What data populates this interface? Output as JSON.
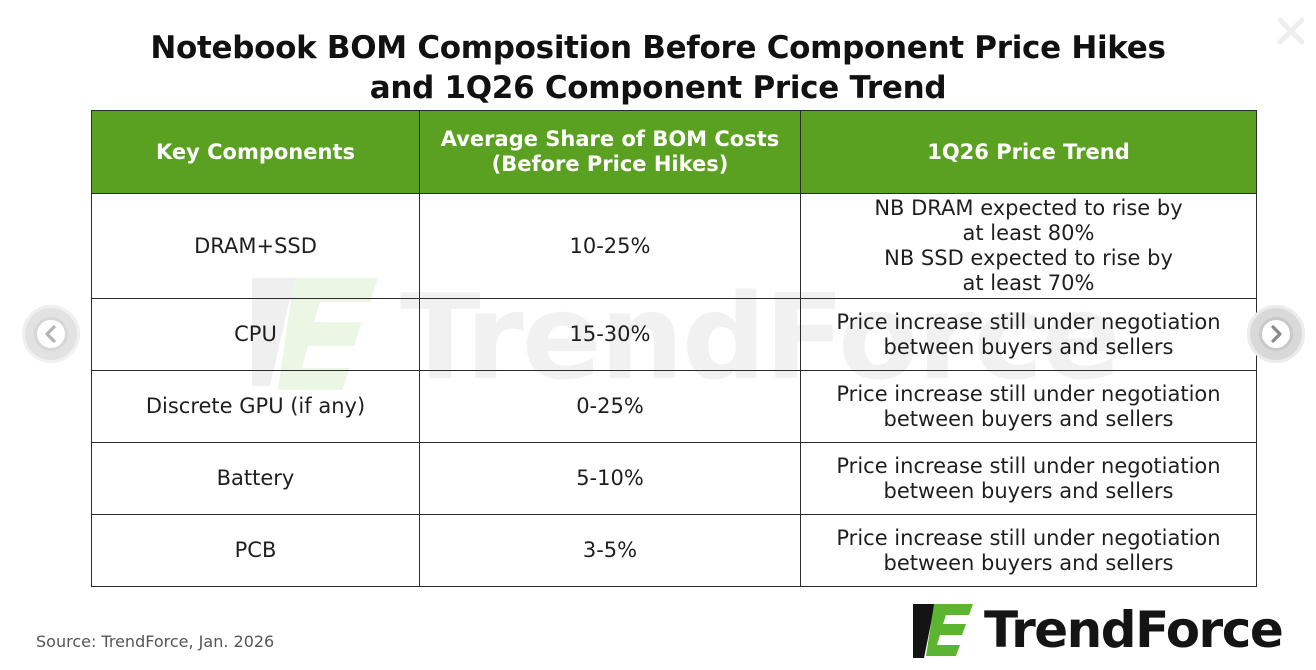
{
  "title": {
    "line1": "Notebook BOM Composition Before Component Price Hikes",
    "line2": "and 1Q26 Component Price Trend"
  },
  "table": {
    "headers": {
      "col1": "Key Components",
      "col2_line1": "Average Share of BOM Costs",
      "col2_line2": "(Before Price Hikes)",
      "col3": "1Q26 Price Trend"
    },
    "rows": [
      {
        "component": "DRAM+SSD",
        "share": "10-25%",
        "trend_lines": [
          "NB DRAM expected to rise by",
          "at least 80%",
          "NB SSD expected to rise by",
          "at least 70%"
        ]
      },
      {
        "component": "CPU",
        "share": "15-30%",
        "trend_lines": [
          "Price increase still under negotiation",
          "between buyers and sellers"
        ]
      },
      {
        "component": "Discrete GPU (if any)",
        "share": "0-25%",
        "trend_lines": [
          "Price increase still under negotiation",
          "between buyers and sellers"
        ]
      },
      {
        "component": "Battery",
        "share": "5-10%",
        "trend_lines": [
          "Price increase still under negotiation",
          "between buyers and sellers"
        ]
      },
      {
        "component": "PCB",
        "share": "3-5%",
        "trend_lines": [
          "Price increase still under negotiation",
          "between buyers and sellers"
        ]
      }
    ]
  },
  "watermark": {
    "text": "TrendForce"
  },
  "source": "Source: TrendForce,  Jan. 2026",
  "brand": {
    "name": "TrendForce"
  },
  "controls": {
    "prev_icon": "chevron-left-icon",
    "next_icon": "chevron-right-icon",
    "close_icon": "close-icon"
  },
  "colors": {
    "header_green": "#5ba121",
    "logo_green": "#5cb531",
    "logo_dark": "#141414"
  }
}
